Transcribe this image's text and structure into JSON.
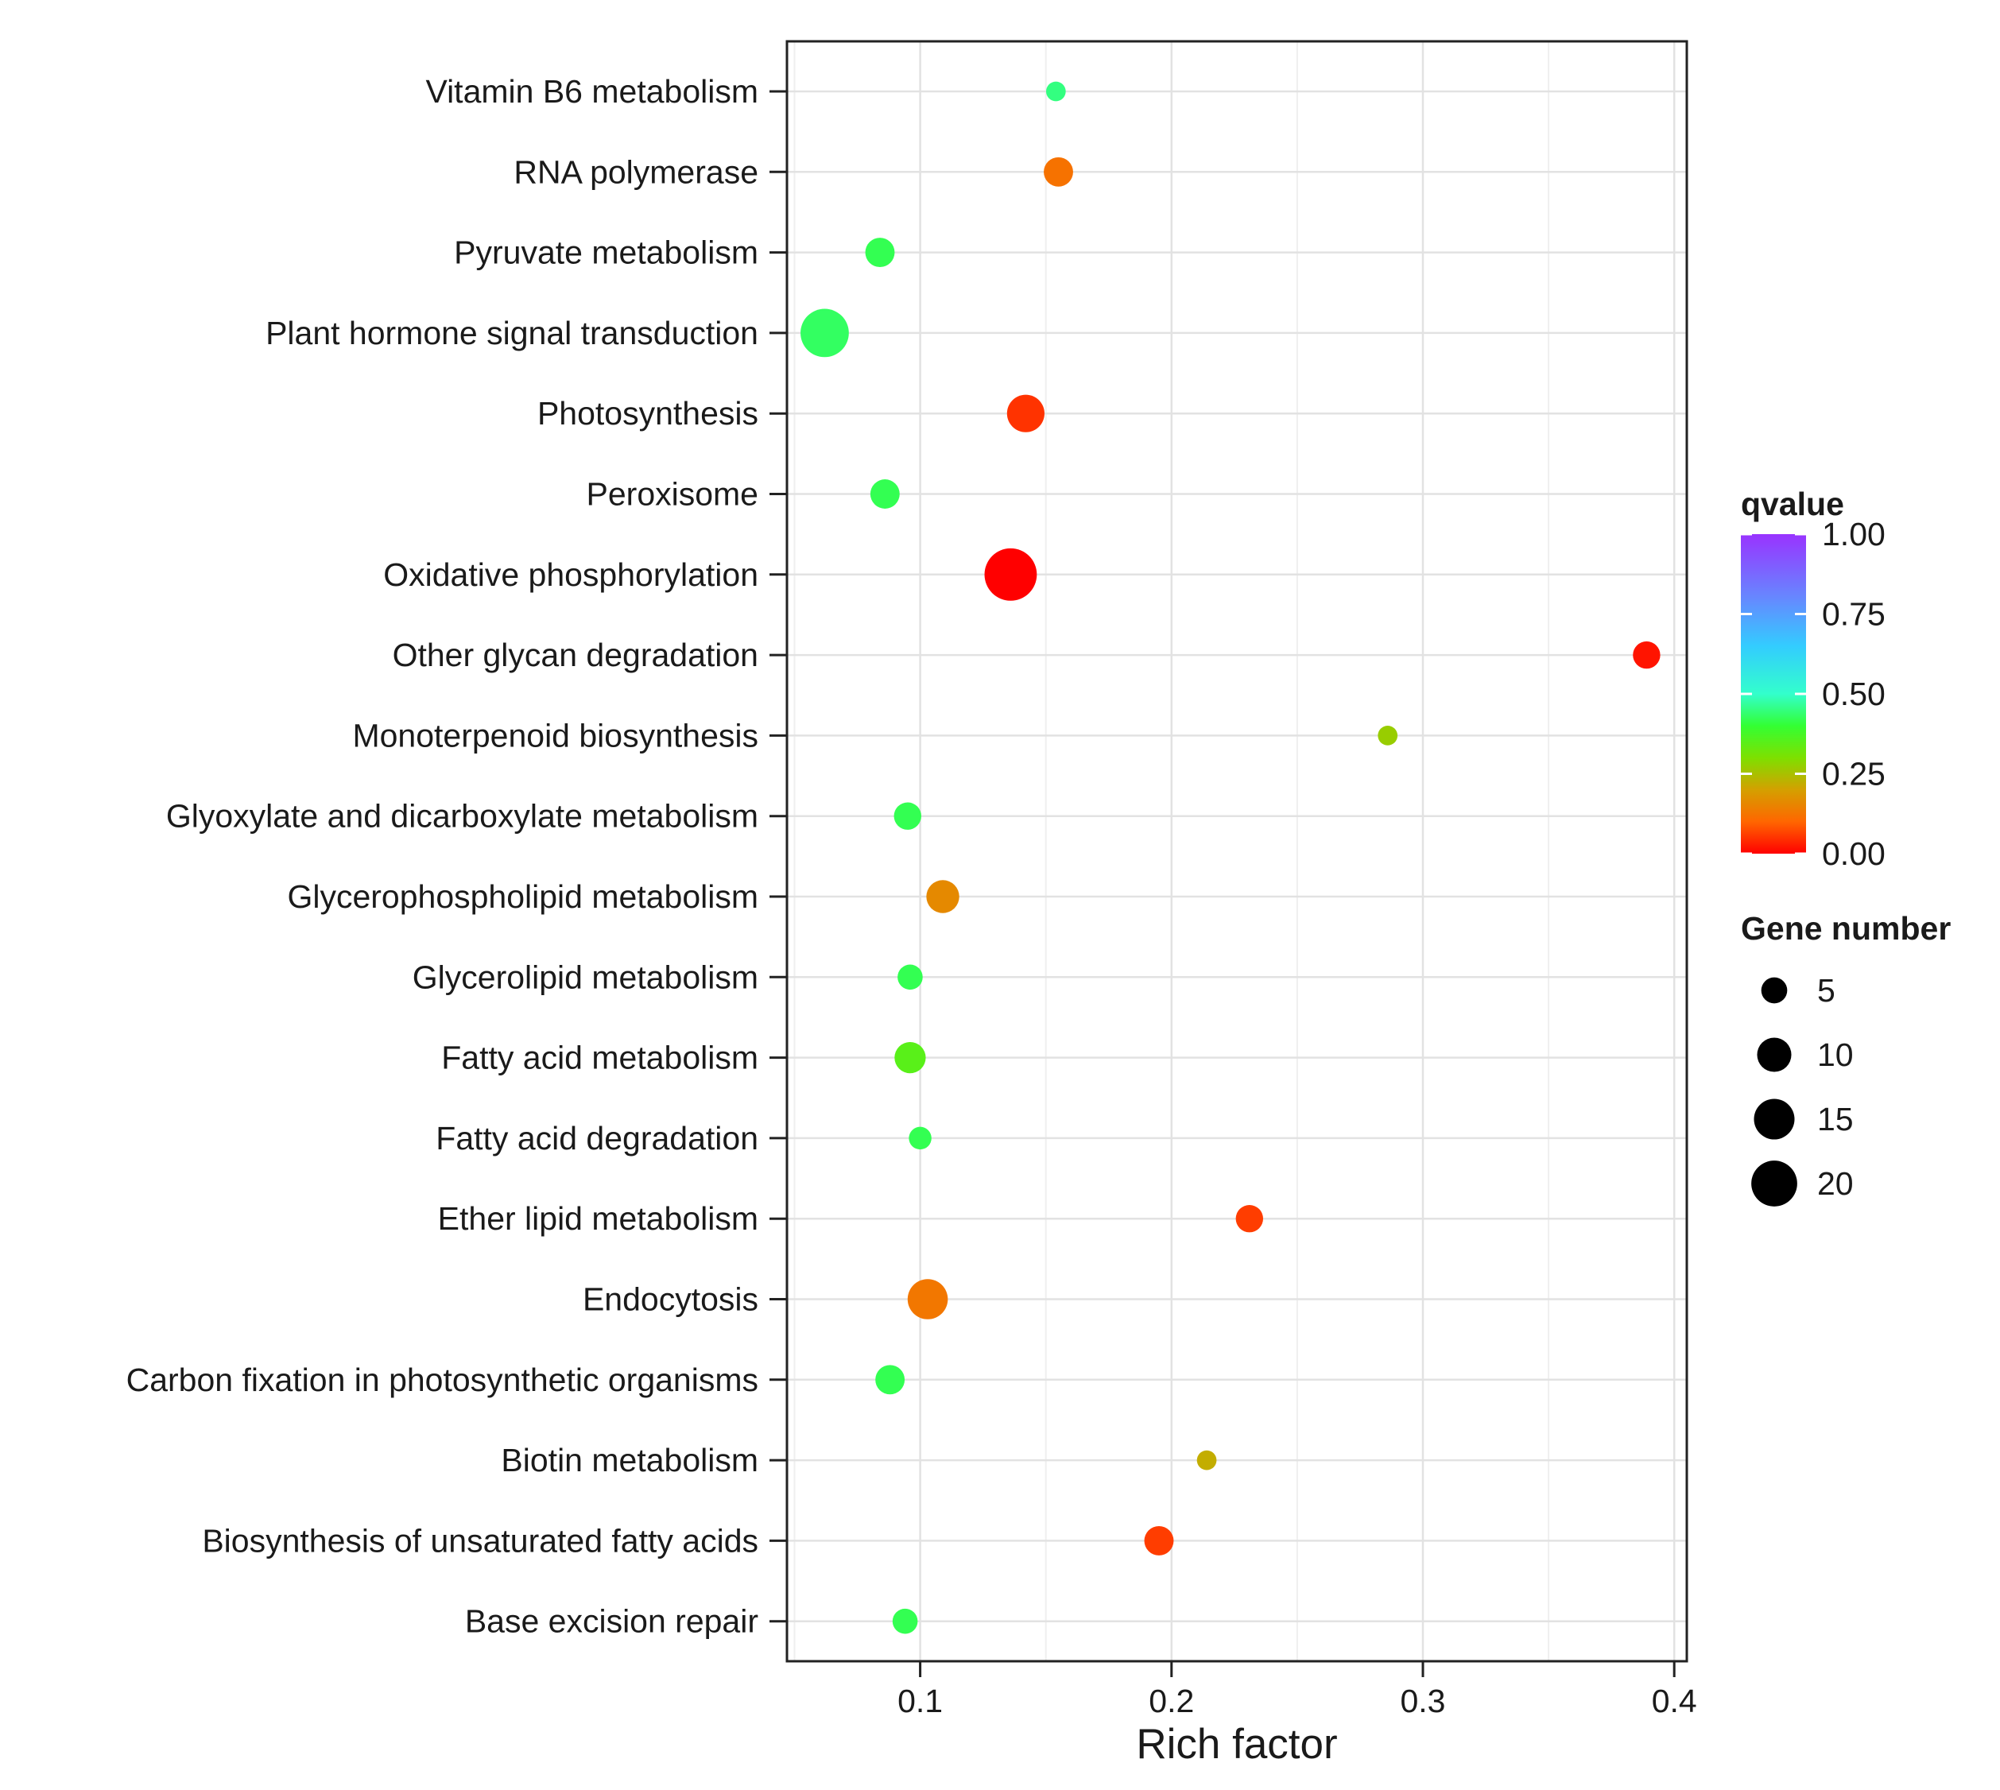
{
  "chart_data": {
    "type": "scatter",
    "title": "",
    "xlabel": "Rich factor",
    "ylabel": "",
    "xlim": [
      0.047,
      0.405
    ],
    "xticks": [
      0.1,
      0.2,
      0.3,
      0.4
    ],
    "xtick_labels": [
      "0.1",
      "0.2",
      "0.3",
      "0.4"
    ],
    "grid": true,
    "categories": [
      "Vitamin B6 metabolism",
      "RNA polymerase",
      "Pyruvate metabolism",
      "Plant hormone signal transduction",
      "Photosynthesis",
      "Peroxisome",
      "Oxidative phosphorylation",
      "Other glycan degradation",
      "Monoterpenoid biosynthesis",
      "Glyoxylate and dicarboxylate metabolism",
      "Glycerophospholipid metabolism",
      "Glycerolipid metabolism",
      "Fatty acid metabolism",
      "Fatty acid degradation",
      "Ether lipid metabolism",
      "Endocytosis",
      "Carbon fixation in photosynthetic organisms",
      "Biotin metabolism",
      "Biosynthesis of unsaturated fatty acids",
      "Base excision repair"
    ],
    "points": [
      {
        "pathway": "Vitamin B6 metabolism",
        "rich_factor": 0.154,
        "gene_number": 2,
        "qvalue": 0.45
      },
      {
        "pathway": "RNA polymerase",
        "rich_factor": 0.155,
        "gene_number": 6,
        "qvalue": 0.12
      },
      {
        "pathway": "Pyruvate metabolism",
        "rich_factor": 0.084,
        "gene_number": 6,
        "qvalue": 0.42
      },
      {
        "pathway": "Plant hormone signal transduction",
        "rich_factor": 0.062,
        "gene_number": 20,
        "qvalue": 0.43
      },
      {
        "pathway": "Photosynthesis",
        "rich_factor": 0.142,
        "gene_number": 11,
        "qvalue": 0.05
      },
      {
        "pathway": "Peroxisome",
        "rich_factor": 0.086,
        "gene_number": 6,
        "qvalue": 0.42
      },
      {
        "pathway": "Oxidative phosphorylation",
        "rich_factor": 0.136,
        "gene_number": 24,
        "qvalue": 0.0
      },
      {
        "pathway": "Other glycan degradation",
        "rich_factor": 0.389,
        "gene_number": 5,
        "qvalue": 0.02
      },
      {
        "pathway": "Monoterpenoid biosynthesis",
        "rich_factor": 0.286,
        "gene_number": 2,
        "qvalue": 0.27
      },
      {
        "pathway": "Glyoxylate and dicarboxylate metabolism",
        "rich_factor": 0.095,
        "gene_number": 5,
        "qvalue": 0.42
      },
      {
        "pathway": "Glycerophospholipid metabolism",
        "rich_factor": 0.109,
        "gene_number": 8,
        "qvalue": 0.16
      },
      {
        "pathway": "Glycerolipid metabolism",
        "rich_factor": 0.096,
        "gene_number": 4,
        "qvalue": 0.42
      },
      {
        "pathway": "Fatty acid metabolism",
        "rich_factor": 0.096,
        "gene_number": 7,
        "qvalue": 0.35
      },
      {
        "pathway": "Fatty acid degradation",
        "rich_factor": 0.1,
        "gene_number": 3,
        "qvalue": 0.42
      },
      {
        "pathway": "Ether lipid metabolism",
        "rich_factor": 0.231,
        "gene_number": 5,
        "qvalue": 0.06
      },
      {
        "pathway": "Endocytosis",
        "rich_factor": 0.103,
        "gene_number": 13,
        "qvalue": 0.13
      },
      {
        "pathway": "Carbon fixation in photosynthetic organisms",
        "rich_factor": 0.088,
        "gene_number": 6,
        "qvalue": 0.42
      },
      {
        "pathway": "Biotin metabolism",
        "rich_factor": 0.214,
        "gene_number": 2,
        "qvalue": 0.22
      },
      {
        "pathway": "Biosynthesis of unsaturated fatty acids",
        "rich_factor": 0.195,
        "gene_number": 6,
        "qvalue": 0.06
      },
      {
        "pathway": "Base excision repair",
        "rich_factor": 0.094,
        "gene_number": 4,
        "qvalue": 0.42
      }
    ],
    "color_legend": {
      "title": "qvalue",
      "ticks": [
        1.0,
        0.75,
        0.5,
        0.25,
        0.0
      ],
      "tick_labels": [
        "1.00",
        "0.75",
        "0.50",
        "0.25",
        "0.00"
      ],
      "gradient": [
        "#ff0000",
        "#ff6600",
        "#d4a000",
        "#7ee000",
        "#33ff33",
        "#33ffcc",
        "#33ccff",
        "#6688ff",
        "#8844ff",
        "#9933ff"
      ]
    },
    "size_legend": {
      "title": "Gene number",
      "values": [
        5,
        10,
        15,
        20
      ],
      "labels": [
        "5",
        "10",
        "15",
        "20"
      ]
    },
    "legend_position": "right"
  }
}
